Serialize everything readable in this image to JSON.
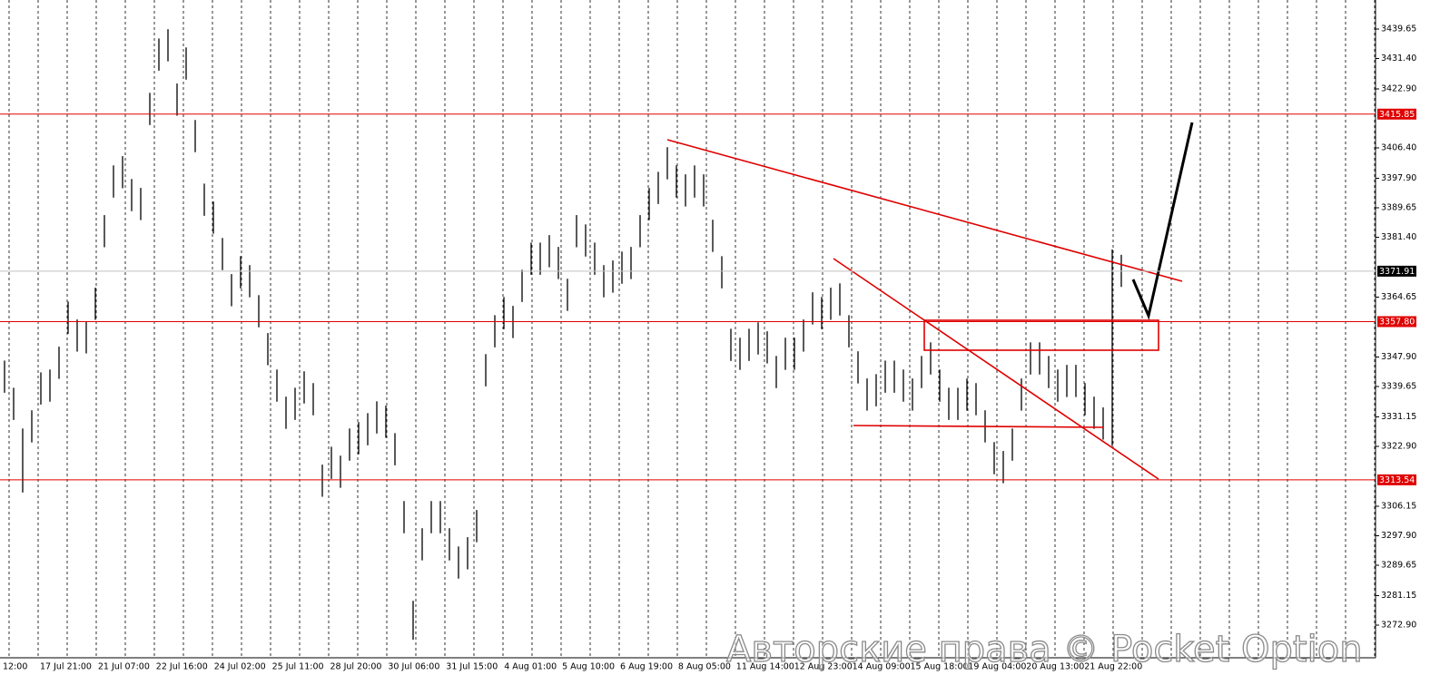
{
  "chart_data": {
    "type": "ohlc",
    "color": "#000000",
    "categories": [
      "12:00",
      "17 Jul 21:00",
      "21 Jul 07:00",
      "22 Jul 16:00",
      "24 Jul 02:00",
      "25 Jul 11:00",
      "28 Jul 20:00",
      "30 Jul 06:00",
      "31 Jul 15:00",
      "4 Aug 01:00",
      "5 Aug 10:00",
      "6 Aug 19:00",
      "8 Aug 05:00",
      "11 Aug 14:00",
      "12 Aug 23:00",
      "14 Aug 09:00",
      "15 Aug 18:00",
      "19 Aug 04:00",
      "20 Aug 13:00",
      "21 Aug 22:00"
    ],
    "high": [
      3346.9,
      3339.3,
      3327.9,
      3333.0,
      3343.6,
      3344.4,
      3350.8,
      3363.4,
      3358.4,
      3357.9,
      3367.3,
      3387.6,
      3401.5,
      3404.1,
      3397.7,
      3395.2,
      3421.8,
      3437.0,
      3439.6,
      3424.4,
      3434.5,
      3414.2,
      3396.4,
      3391.4,
      3381.2,
      3371.1,
      3376.1,
      3373.6,
      3365.2,
      3354.6,
      3344.4,
      3336.8,
      3339.3,
      3343.9,
      3340.6,
      3317.8,
      3322.8,
      3320.3,
      3327.9,
      3329.7,
      3332.2,
      3335.5,
      3334.3,
      3326.6,
      3307.6,
      3279.7,
      3300.0,
      3307.6,
      3307.6,
      3300.0,
      3294.9,
      3297.5,
      3305.1,
      3348.7,
      3359.6,
      3364.7,
      3362.2,
      3372.3,
      3379.9,
      3379.9,
      3382.0,
      3378.7,
      3369.8,
      3387.6,
      3385.0,
      3379.9,
      3373.6,
      3374.9,
      3377.4,
      3378.7,
      3387.6,
      3395.2,
      3399.7,
      3406.6,
      3401.5,
      3399.0,
      3401.5,
      3399.0,
      3386.3,
      3376.1,
      3355.8,
      3353.3,
      3355.8,
      3357.6,
      3355.1,
      3348.2,
      3353.3,
      3353.3,
      3358.4,
      3366.0,
      3364.7,
      3367.3,
      3368.5,
      3359.6,
      3349.5,
      3341.9,
      3343.1,
      3346.9,
      3346.9,
      3344.4,
      3341.9,
      3348.2,
      3352.0,
      3344.4,
      3339.3,
      3339.3,
      3341.9,
      3340.6,
      3333.0,
      3324.1,
      3321.6,
      3327.9,
      3341.9,
      3352.0,
      3352.0,
      3348.2,
      3344.4,
      3345.7,
      3345.7,
      3340.6,
      3336.8,
      3333.8,
      3378.0,
      3376.5
    ],
    "low": [
      3337.9,
      3330.3,
      3310.0,
      3324.0,
      3334.6,
      3335.4,
      3341.8,
      3354.4,
      3349.4,
      3348.9,
      3358.3,
      3378.6,
      3392.5,
      3395.1,
      3388.7,
      3386.2,
      3412.8,
      3428.0,
      3430.6,
      3415.4,
      3425.5,
      3405.2,
      3387.4,
      3382.4,
      3372.2,
      3362.1,
      3367.1,
      3364.6,
      3356.2,
      3345.6,
      3335.4,
      3327.8,
      3330.3,
      3334.9,
      3331.6,
      3308.8,
      3313.8,
      3311.3,
      3318.9,
      3320.7,
      3323.2,
      3326.5,
      3325.3,
      3317.6,
      3298.6,
      3268.8,
      3291.0,
      3298.6,
      3298.6,
      3291.0,
      3285.9,
      3288.5,
      3296.1,
      3339.7,
      3350.6,
      3355.7,
      3353.2,
      3363.3,
      3370.9,
      3370.9,
      3373.0,
      3369.7,
      3360.8,
      3378.6,
      3376.0,
      3370.9,
      3364.6,
      3365.9,
      3368.4,
      3369.7,
      3378.6,
      3386.2,
      3390.7,
      3397.6,
      3392.5,
      3390.0,
      3392.5,
      3390.0,
      3377.3,
      3367.1,
      3346.8,
      3344.3,
      3346.8,
      3348.6,
      3346.1,
      3339.2,
      3344.3,
      3344.3,
      3349.4,
      3357.0,
      3355.7,
      3358.3,
      3359.5,
      3350.6,
      3340.5,
      3332.9,
      3334.1,
      3337.9,
      3337.9,
      3335.4,
      3332.9,
      3339.2,
      3343.0,
      3335.4,
      3330.3,
      3330.3,
      3332.9,
      3331.6,
      3324.0,
      3315.1,
      3312.6,
      3318.9,
      3332.9,
      3343.0,
      3343.0,
      3339.2,
      3335.4,
      3336.7,
      3336.7,
      3331.6,
      3327.8,
      3324.8,
      3323.0,
      3367.5
    ],
    "ylim": [
      3263.76,
      3447.77
    ],
    "yticks": [
      {
        "value": 3439.65,
        "label": "3439.65"
      },
      {
        "value": 3431.4,
        "label": "3431.40"
      },
      {
        "value": 3422.9,
        "label": "3422.90"
      },
      {
        "value": 3406.4,
        "label": "3406.40"
      },
      {
        "value": 3397.9,
        "label": "3397.90"
      },
      {
        "value": 3389.65,
        "label": "3389.65"
      },
      {
        "value": 3381.4,
        "label": "3381.40"
      },
      {
        "value": 3364.65,
        "label": "3364.65"
      },
      {
        "value": 3347.9,
        "label": "3347.90"
      },
      {
        "value": 3339.65,
        "label": "3339.65"
      },
      {
        "value": 3331.15,
        "label": "3331.15"
      },
      {
        "value": 3322.9,
        "label": "3322.90"
      },
      {
        "value": 3306.15,
        "label": "3306.15"
      },
      {
        "value": 3297.9,
        "label": "3297.90"
      },
      {
        "value": 3289.65,
        "label": "3289.65"
      },
      {
        "value": 3281.15,
        "label": "3281.15"
      },
      {
        "value": 3272.9,
        "label": "3272.90"
      }
    ],
    "levels": [
      {
        "value": 3415.85,
        "label": "3415.85",
        "color": "#e00000"
      },
      {
        "value": 3357.8,
        "label": "3357.80",
        "color": "#e00000"
      },
      {
        "value": 3313.54,
        "label": "3313.54",
        "color": "#e00000"
      }
    ],
    "current_price": {
      "value": 3371.91,
      "label": "3371.91",
      "color": "#c0c0c0"
    },
    "watermark": "Авторские права © Pocket Option"
  }
}
